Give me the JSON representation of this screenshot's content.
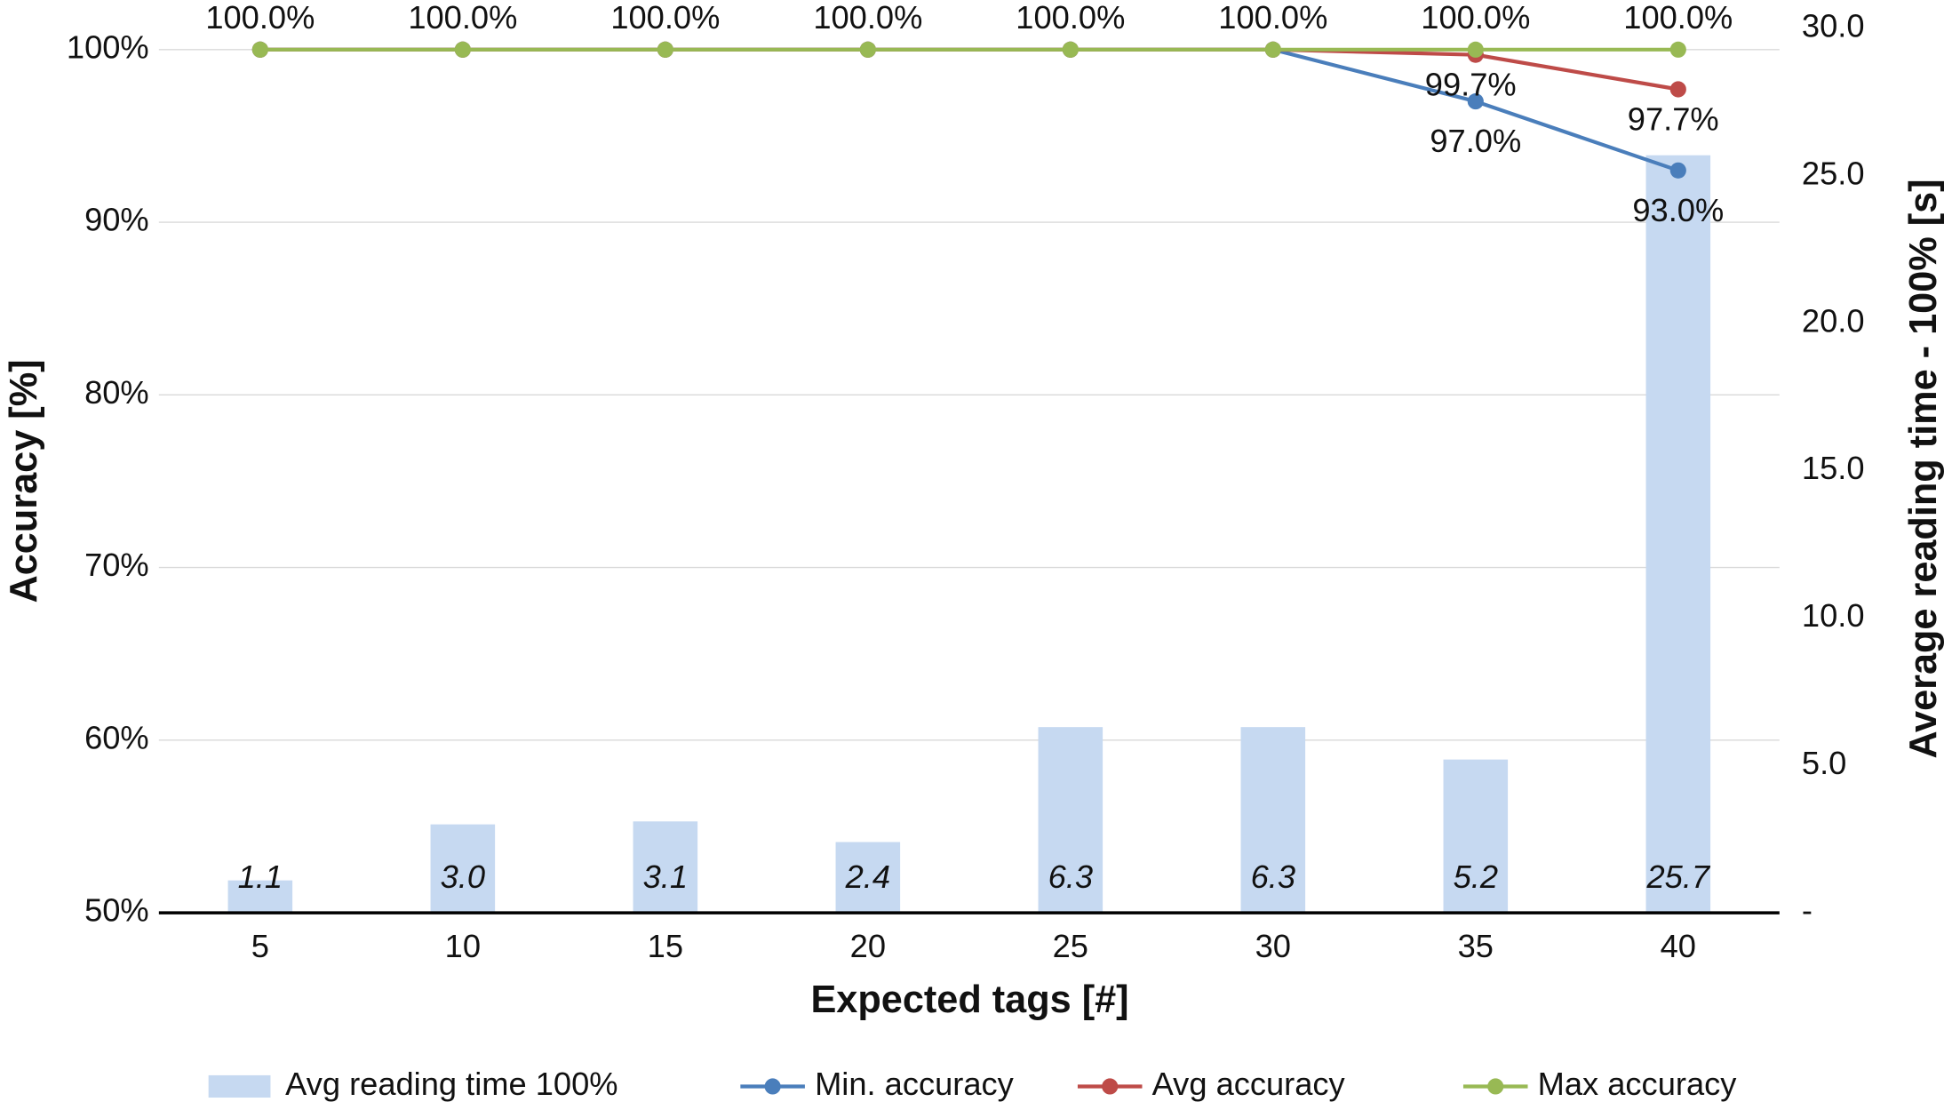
{
  "chart_data": {
    "type": "combo",
    "x_label": "Expected tags [#]",
    "y_label": "Accuracy [%]",
    "y2_label": "Average reading time - 100% [s]",
    "categories": [
      5,
      10,
      15,
      20,
      25,
      30,
      35,
      40
    ],
    "ylim": [
      50,
      100
    ],
    "yticks": [
      {
        "value": 50,
        "label": "50%"
      },
      {
        "value": 60,
        "label": "60%"
      },
      {
        "value": 70,
        "label": "70%"
      },
      {
        "value": 80,
        "label": "80%"
      },
      {
        "value": 90,
        "label": "90%"
      },
      {
        "value": 100,
        "label": "100%"
      }
    ],
    "y2lim": [
      0,
      30
    ],
    "y2ticks": [
      {
        "value": 0,
        "label": "-"
      },
      {
        "value": 5,
        "label": "5.0"
      },
      {
        "value": 10,
        "label": "10.0"
      },
      {
        "value": 15,
        "label": "15.0"
      },
      {
        "value": 20,
        "label": "20.0"
      },
      {
        "value": 25,
        "label": "25.0"
      },
      {
        "value": 30,
        "label": "30.0"
      }
    ],
    "grid": true,
    "legend": "bottom",
    "series": [
      {
        "name": "Avg reading time 100%",
        "type": "bar",
        "axis": "y2",
        "color": "#c6d9f1",
        "values": [
          1.1,
          3.0,
          3.1,
          2.4,
          6.3,
          6.3,
          5.2,
          25.7
        ],
        "value_labels": [
          "1.1",
          "3.0",
          "3.1",
          "2.4",
          "6.3",
          "6.3",
          "5.2",
          "25.7"
        ]
      },
      {
        "name": "Min. accuracy",
        "type": "line",
        "color": "#4a7ebb",
        "values": [
          100,
          100,
          100,
          100,
          100,
          100,
          97.0,
          93.0
        ],
        "value_labels": [
          null,
          null,
          null,
          null,
          null,
          null,
          "97.0%",
          "93.0%"
        ]
      },
      {
        "name": "Avg accuracy",
        "type": "line",
        "color": "#be4b48",
        "values": [
          100,
          100,
          100,
          100,
          100,
          100,
          99.7,
          97.7
        ],
        "value_labels": [
          null,
          null,
          null,
          null,
          null,
          null,
          "99.7%",
          "97.7%"
        ]
      },
      {
        "name": "Max accuracy",
        "type": "line",
        "color": "#98b954",
        "values": [
          100,
          100,
          100,
          100,
          100,
          100,
          100,
          100
        ],
        "value_labels": [
          "100.0%",
          "100.0%",
          "100.0%",
          "100.0%",
          "100.0%",
          "100.0%",
          "100.0%",
          "100.0%"
        ]
      }
    ]
  }
}
